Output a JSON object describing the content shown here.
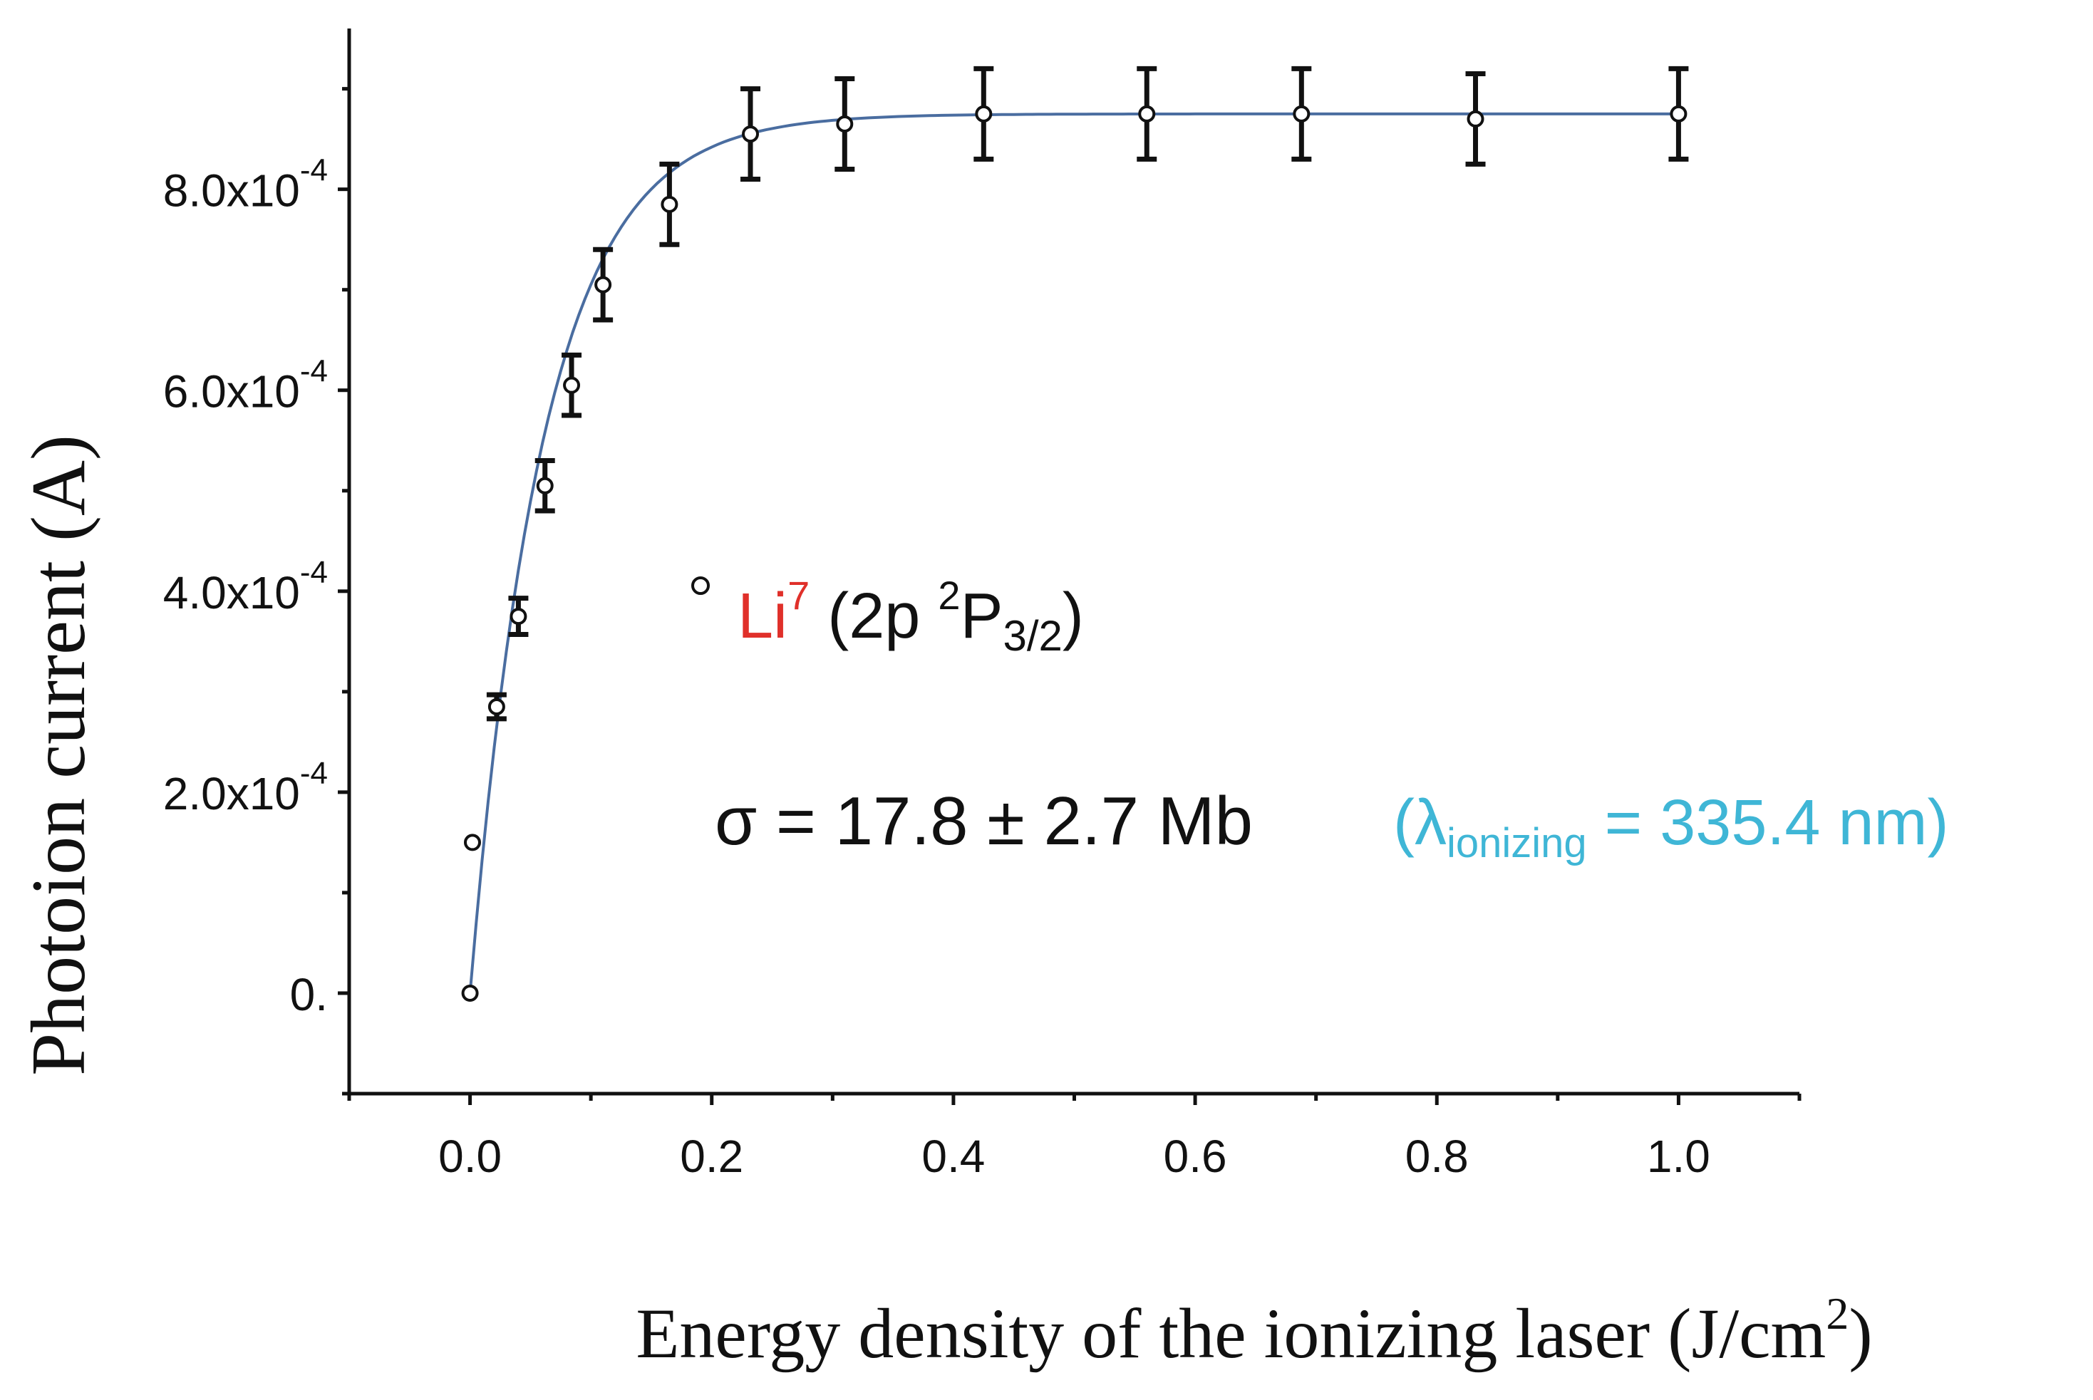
{
  "chart_data": {
    "type": "scatter",
    "title": "",
    "xlabel": "Energy density of the ionizing laser (J/cm",
    "xlabel_sup": "2",
    "xlabel_close": ")",
    "ylabel": "Photoion current (A)",
    "xlim": [
      -0.1,
      1.1
    ],
    "ylim": [
      -0.0001,
      0.00096
    ],
    "x_ticks": [
      0.0,
      0.2,
      0.4,
      0.6,
      0.8,
      1.0
    ],
    "x_tick_labels": [
      "0.0",
      "0.2",
      "0.4",
      "0.6",
      "0.8",
      "1.0"
    ],
    "y_ticks": [
      0,
      0.0002,
      0.0004,
      0.0006,
      0.0008
    ],
    "y_tick_labels": [
      {
        "base": "0.",
        "exp": ""
      },
      {
        "base": "2.0x10",
        "exp": "-4"
      },
      {
        "base": "4.0x10",
        "exp": "-4"
      },
      {
        "base": "6.0x10",
        "exp": "-4"
      },
      {
        "base": "8.0x10",
        "exp": "-4"
      }
    ],
    "series": [
      {
        "name": "Li7 (2p 2P3/2)",
        "x": [
          0.0,
          0.002,
          0.022,
          0.04,
          0.062,
          0.084,
          0.11,
          0.165,
          0.232,
          0.31,
          0.425,
          0.56,
          0.688,
          0.832,
          1.0
        ],
        "y": [
          0.0,
          0.00015,
          0.000285,
          0.000375,
          0.000505,
          0.000605,
          0.000705,
          0.000785,
          0.000855,
          0.000865,
          0.000875,
          0.000875,
          0.000875,
          0.00087,
          0.000875
        ],
        "err": [
          0.0,
          0.0,
          1.2e-05,
          1.8e-05,
          2.5e-05,
          3e-05,
          3.5e-05,
          4e-05,
          4.5e-05,
          4.5e-05,
          4.5e-05,
          4.5e-05,
          4.5e-05,
          4.5e-05,
          4.5e-05
        ],
        "fit": {
          "model": "saturation: y = A(1 - exp(-x/Fsat))",
          "A": 0.000875,
          "Fsat": 0.061
        }
      }
    ],
    "legend": {
      "marker": "open-circle",
      "species": "Li",
      "species_sup": "7",
      "state_open": " (2p ",
      "state_sup": "2",
      "state_term": "P",
      "state_sub": "3/2",
      "state_close": ")",
      "position": "center"
    },
    "annotation": {
      "sigma_text": "σ = 17.8 ±  2.7 Mb",
      "lambda_open": "(λ",
      "lambda_sub": "ionizing",
      "lambda_rest": " = 335.4 nm)"
    },
    "colors": {
      "fit_line": "#4a6da0",
      "species": "#e0302a",
      "annotation_wavelength": "#3fb6d6",
      "axes": "#111111"
    }
  }
}
